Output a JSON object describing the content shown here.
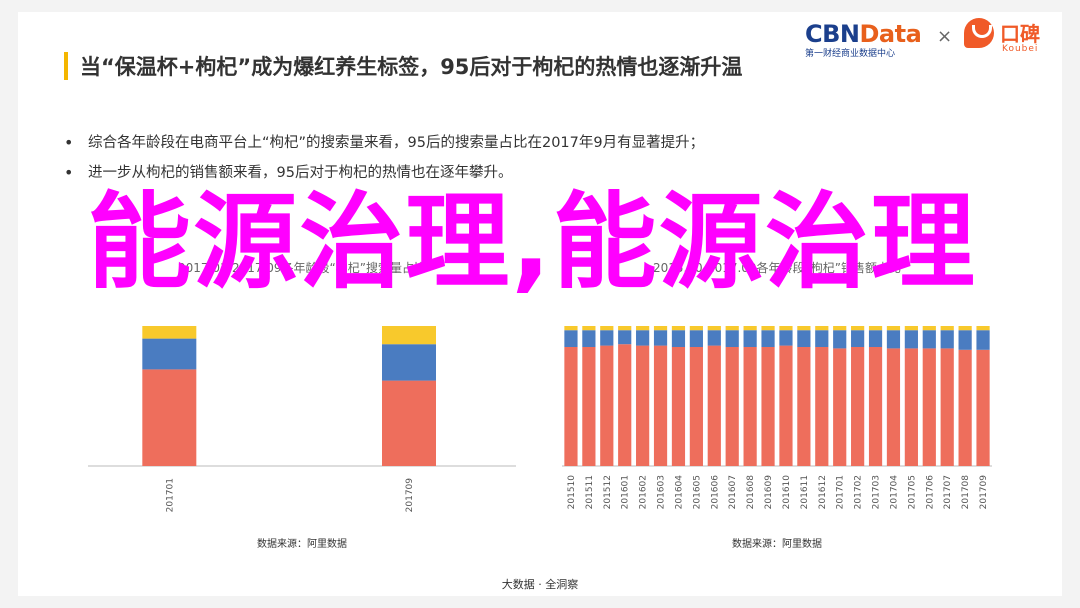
{
  "header": {
    "title": "当“保温杯+枸杞”成为爆红养生标签，95后对于枸杞的热情也逐渐升温"
  },
  "logos": {
    "cbn_main": "CBN",
    "cbn_data": "Data",
    "cbn_sub": "第一财经商业数据中心",
    "times": "×",
    "koubei_name": "口碑",
    "koubei_sub": "Koubei"
  },
  "bullets": [
    "综合各年龄段在电商平台上“枸杞”的搜索量来看，95后的搜索量占比在2017年9月有显著提升；",
    "进一步从枸杞的销售额来看，95后对于枸杞的热情也在逐年攀升。"
  ],
  "overlay_text": "能源治理,能源治理",
  "footer": "大数据 · 全洞察",
  "colors": {
    "red": "#ee6e5c",
    "blue": "#4a7cc1",
    "yellow": "#f8c92c",
    "overlay": "#ff00ff"
  },
  "chart_data": [
    {
      "type": "bar",
      "stacked": true,
      "title": "2017.01-2017.09各年龄段“枸杞”搜索量占比",
      "categories": [
        "201701",
        "201709"
      ],
      "series": [
        {
          "name": "",
          "color": "#ee6e5c",
          "values": [
            69,
            61
          ]
        },
        {
          "name": "",
          "color": "#4a7cc1",
          "values": [
            22,
            26
          ]
        },
        {
          "name": "",
          "color": "#f8c92c",
          "values": [
            9,
            13
          ]
        }
      ],
      "ylim": [
        0,
        100
      ],
      "source": "数据来源：阿里数据"
    },
    {
      "type": "bar",
      "stacked": true,
      "title": "2015.10-2017.09各年龄段“枸杞”销售额占比",
      "categories": [
        "201510",
        "201511",
        "201512",
        "201601",
        "201602",
        "201603",
        "201604",
        "201605",
        "201606",
        "201607",
        "201608",
        "201609",
        "201610",
        "201611",
        "201612",
        "201701",
        "201702",
        "201703",
        "201704",
        "201705",
        "201706",
        "201707",
        "201708",
        "201709"
      ],
      "series": [
        {
          "name": "",
          "color": "#ee6e5c",
          "values": [
            85,
            85,
            86,
            87,
            86,
            86,
            85,
            85,
            86,
            85,
            85,
            85,
            86,
            85,
            85,
            84,
            85,
            85,
            84,
            84,
            84,
            84,
            83,
            83
          ]
        },
        {
          "name": "",
          "color": "#4a7cc1",
          "values": [
            12,
            12,
            11,
            10,
            11,
            11,
            12,
            12,
            11,
            12,
            12,
            12,
            11,
            12,
            12,
            13,
            12,
            12,
            13,
            13,
            13,
            13,
            14,
            14
          ]
        },
        {
          "name": "",
          "color": "#f8c92c",
          "values": [
            3,
            3,
            3,
            3,
            3,
            3,
            3,
            3,
            3,
            3,
            3,
            3,
            3,
            3,
            3,
            3,
            3,
            3,
            3,
            3,
            3,
            3,
            3,
            3
          ]
        }
      ],
      "ylim": [
        0,
        100
      ],
      "source": "数据来源：阿里数据"
    }
  ]
}
